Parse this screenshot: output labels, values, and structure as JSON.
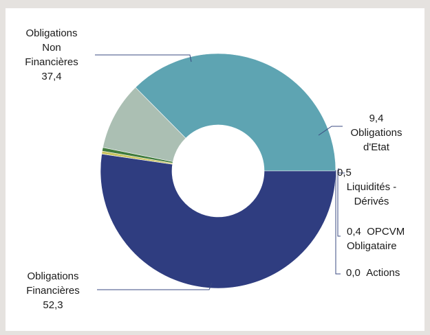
{
  "chart_data": {
    "type": "pie",
    "donut": true,
    "slices": [
      {
        "label": "Obligations Non Financières",
        "value": 37.4,
        "display": "37,4",
        "color": "#5ea4b2"
      },
      {
        "label": "Obligations d'Etat",
        "value": 9.4,
        "display": "9,4",
        "color": "#abbfb3"
      },
      {
        "label": "Liquidités - Dérivés",
        "value": 0.5,
        "display": "0,5",
        "color": "#3f7b3c"
      },
      {
        "label": "OPCVM Obligataire",
        "value": 0.4,
        "display": "0,4",
        "color": "#c9c35e"
      },
      {
        "label": "Actions",
        "value": 0.0,
        "display": "0,0",
        "color": "#8aa04a"
      },
      {
        "label": "Obligations Financières",
        "value": 52.3,
        "display": "52,3",
        "color": "#2f3d80"
      }
    ]
  },
  "labels": {
    "onf": {
      "l1": "Obligations",
      "l2": "Non",
      "l3": "Financières",
      "value": "37,4"
    },
    "etat": {
      "value": "9,4",
      "l1": "Obligations",
      "l2": "d'Etat"
    },
    "liq": {
      "value": "0,5",
      "l1": "Liquidités -",
      "l2": "Dérivés"
    },
    "opcvm": {
      "value": "0,4",
      "l1": "OPCVM",
      "l2": "Obligataire"
    },
    "actions": {
      "value": "0,0",
      "l1": "Actions"
    },
    "of": {
      "l1": "Obligations",
      "l2": "Financières",
      "value": "52,3"
    }
  }
}
